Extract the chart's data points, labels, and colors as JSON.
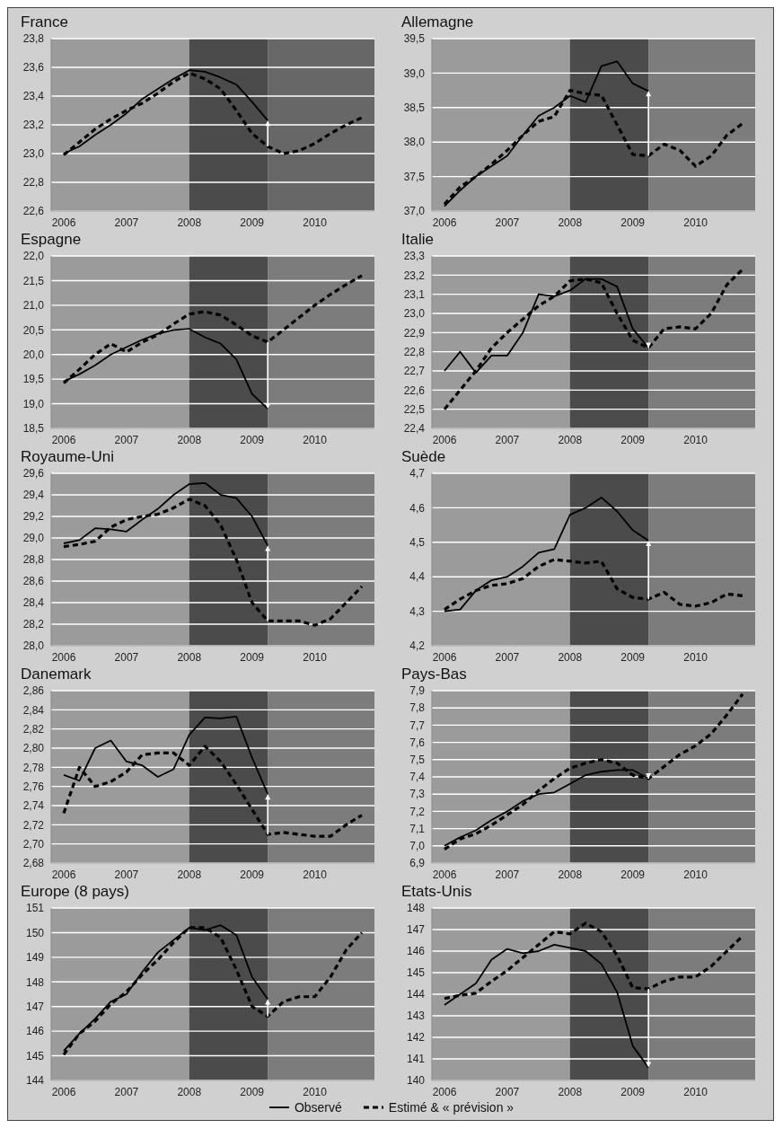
{
  "chart_data": [
    {
      "type": "line",
      "title": "France",
      "x": [
        2006,
        2006.25,
        2006.5,
        2006.75,
        2007,
        2007.25,
        2007.5,
        2007.75,
        2008,
        2008.25,
        2008.5,
        2008.75,
        2009,
        2009.25,
        2009.5,
        2009.75,
        2010,
        2010.25,
        2010.5,
        2010.75
      ],
      "xlim": [
        2005.8,
        2010.95
      ],
      "xticks": [
        2006,
        2007,
        2008,
        2009,
        2010
      ],
      "ylim": [
        22.6,
        23.8
      ],
      "yticks": [
        {
          "value": 22.6,
          "label": "22,6"
        },
        {
          "value": 22.8,
          "label": "22,8"
        },
        {
          "value": 23.0,
          "label": "23,0"
        },
        {
          "value": 23.2,
          "label": "23,2"
        },
        {
          "value": 23.4,
          "label": "23,4"
        },
        {
          "value": 23.6,
          "label": "23,6"
        },
        {
          "value": 23.8,
          "label": "23,8"
        }
      ],
      "grid": "y",
      "marker": "none",
      "bands": [
        {
          "axis": "x",
          "from": 2005.8,
          "to": 2008,
          "color": "#9b9b9b"
        },
        {
          "axis": "x",
          "from": 2008,
          "to": 2009.25,
          "color": "#4b4b4b"
        },
        {
          "axis": "x",
          "from": 2009.25,
          "to": 2010.95,
          "color": "#676767"
        }
      ],
      "series": [
        {
          "color": "#000000",
          "line_style": "solid",
          "values": [
            23.0,
            23.05,
            23.13,
            23.2,
            23.28,
            23.38,
            23.45,
            23.52,
            23.58,
            23.57,
            23.53,
            23.48,
            23.36,
            23.23,
            null,
            null,
            null,
            null,
            null,
            null
          ]
        },
        {
          "color": "#000000",
          "line_style": "dashed",
          "values": [
            22.99,
            23.08,
            23.17,
            23.24,
            23.3,
            23.35,
            23.42,
            23.5,
            23.56,
            23.52,
            23.45,
            23.3,
            23.14,
            23.05,
            23.0,
            23.02,
            23.07,
            23.14,
            23.2,
            23.25
          ]
        }
      ]
    },
    {
      "type": "line",
      "title": "Allemagne",
      "x": [
        2006,
        2006.25,
        2006.5,
        2006.75,
        2007,
        2007.25,
        2007.5,
        2007.75,
        2008,
        2008.25,
        2008.5,
        2008.75,
        2009,
        2009.25,
        2009.5,
        2009.75,
        2010,
        2010.25,
        2010.5,
        2010.75
      ],
      "xlim": [
        2005.8,
        2010.95
      ],
      "xticks": [
        2006,
        2007,
        2008,
        2009,
        2010
      ],
      "ylim": [
        37.0,
        39.5
      ],
      "yticks": [
        {
          "value": 37.0,
          "label": "37,0"
        },
        {
          "value": 37.5,
          "label": "37,5"
        },
        {
          "value": 38.0,
          "label": "38,0"
        },
        {
          "value": 38.5,
          "label": "38,5"
        },
        {
          "value": 39.0,
          "label": "39,0"
        },
        {
          "value": 39.5,
          "label": "39,5"
        }
      ],
      "grid": "y",
      "marker": "none",
      "bands": [
        {
          "axis": "x",
          "from": 2005.8,
          "to": 2008,
          "color": "#9b9b9b"
        },
        {
          "axis": "x",
          "from": 2008,
          "to": 2009.25,
          "color": "#4b4b4b"
        },
        {
          "axis": "x",
          "from": 2009.25,
          "to": 2010.95,
          "color": "#7c7c7c"
        }
      ],
      "series": [
        {
          "color": "#000000",
          "line_style": "solid",
          "values": [
            37.07,
            37.3,
            37.5,
            37.65,
            37.8,
            38.1,
            38.38,
            38.5,
            38.67,
            38.58,
            39.1,
            39.17,
            38.85,
            38.74,
            null,
            null,
            null,
            null,
            null,
            null
          ]
        },
        {
          "color": "#000000",
          "line_style": "dashed",
          "values": [
            37.1,
            37.35,
            37.5,
            37.68,
            37.88,
            38.1,
            38.3,
            38.37,
            38.75,
            38.7,
            38.68,
            38.25,
            37.82,
            37.8,
            37.97,
            37.88,
            37.65,
            37.8,
            38.1,
            38.27
          ]
        }
      ]
    },
    {
      "type": "line",
      "title": "Espagne",
      "x": [
        2006,
        2006.25,
        2006.5,
        2006.75,
        2007,
        2007.25,
        2007.5,
        2007.75,
        2008,
        2008.25,
        2008.5,
        2008.75,
        2009,
        2009.25,
        2009.5,
        2009.75,
        2010,
        2010.25,
        2010.5,
        2010.75
      ],
      "xlim": [
        2005.8,
        2010.95
      ],
      "xticks": [
        2006,
        2007,
        2008,
        2009,
        2010
      ],
      "ylim": [
        18.5,
        22.0
      ],
      "yticks": [
        {
          "value": 18.5,
          "label": "18,5"
        },
        {
          "value": 19.0,
          "label": "19,0"
        },
        {
          "value": 19.5,
          "label": "19,5"
        },
        {
          "value": 20.0,
          "label": "20,0"
        },
        {
          "value": 20.5,
          "label": "20,5"
        },
        {
          "value": 21.0,
          "label": "21,0"
        },
        {
          "value": 21.5,
          "label": "21,5"
        },
        {
          "value": 22.0,
          "label": "22,0"
        }
      ],
      "grid": "y",
      "marker": "none",
      "bands": [
        {
          "axis": "x",
          "from": 2005.8,
          "to": 2008,
          "color": "#9b9b9b"
        },
        {
          "axis": "x",
          "from": 2008,
          "to": 2009.25,
          "color": "#4b4b4b"
        },
        {
          "axis": "x",
          "from": 2009.25,
          "to": 2010.95,
          "color": "#7c7c7c"
        }
      ],
      "series": [
        {
          "color": "#000000",
          "line_style": "solid",
          "values": [
            19.45,
            19.6,
            19.78,
            20.0,
            20.15,
            20.3,
            20.42,
            20.5,
            20.52,
            20.35,
            20.22,
            19.9,
            19.2,
            18.9,
            null,
            null,
            null,
            null,
            null,
            null
          ]
        },
        {
          "color": "#000000",
          "line_style": "dashed",
          "values": [
            19.42,
            19.7,
            20.0,
            20.22,
            20.05,
            20.25,
            20.4,
            20.62,
            20.82,
            20.87,
            20.8,
            20.6,
            20.38,
            20.25,
            20.5,
            20.75,
            21.0,
            21.22,
            21.42,
            21.6
          ]
        }
      ]
    },
    {
      "type": "line",
      "title": "Italie",
      "x": [
        2006,
        2006.25,
        2006.5,
        2006.75,
        2007,
        2007.25,
        2007.5,
        2007.75,
        2008,
        2008.25,
        2008.5,
        2008.75,
        2009,
        2009.25,
        2009.5,
        2009.75,
        2010,
        2010.25,
        2010.5,
        2010.75
      ],
      "xlim": [
        2005.8,
        2010.95
      ],
      "xticks": [
        2006,
        2007,
        2008,
        2009,
        2010
      ],
      "ylim": [
        22.4,
        23.3
      ],
      "yticks": [
        {
          "value": 22.4,
          "label": "22,4"
        },
        {
          "value": 22.5,
          "label": "22,5"
        },
        {
          "value": 22.6,
          "label": "22,6"
        },
        {
          "value": 22.7,
          "label": "22,7"
        },
        {
          "value": 22.8,
          "label": "22,8"
        },
        {
          "value": 22.9,
          "label": "22,9"
        },
        {
          "value": 23.0,
          "label": "23,0"
        },
        {
          "value": 23.1,
          "label": "23,1"
        },
        {
          "value": 23.2,
          "label": "23,2"
        },
        {
          "value": 23.3,
          "label": "23,3"
        }
      ],
      "grid": "y",
      "marker": "none",
      "bands": [
        {
          "axis": "x",
          "from": 2005.8,
          "to": 2008,
          "color": "#9b9b9b"
        },
        {
          "axis": "x",
          "from": 2008,
          "to": 2009.25,
          "color": "#4b4b4b"
        },
        {
          "axis": "x",
          "from": 2009.25,
          "to": 2010.95,
          "color": "#7c7c7c"
        }
      ],
      "series": [
        {
          "color": "#000000",
          "line_style": "solid",
          "values": [
            22.7,
            22.8,
            22.69,
            22.78,
            22.78,
            22.9,
            23.1,
            23.09,
            23.12,
            23.18,
            23.18,
            23.14,
            22.92,
            22.82,
            null,
            null,
            null,
            null,
            null,
            null
          ]
        },
        {
          "color": "#000000",
          "line_style": "dashed",
          "values": [
            22.5,
            22.6,
            22.7,
            22.82,
            22.9,
            22.97,
            23.04,
            23.09,
            23.17,
            23.18,
            23.16,
            23.0,
            22.86,
            22.82,
            22.92,
            22.93,
            22.92,
            23.0,
            23.15,
            23.23
          ]
        }
      ]
    },
    {
      "type": "line",
      "title": "Royaume-Uni",
      "x": [
        2006,
        2006.25,
        2006.5,
        2006.75,
        2007,
        2007.25,
        2007.5,
        2007.75,
        2008,
        2008.25,
        2008.5,
        2008.75,
        2009,
        2009.25,
        2009.5,
        2009.75,
        2010,
        2010.25,
        2010.5,
        2010.75
      ],
      "xlim": [
        2005.8,
        2010.95
      ],
      "xticks": [
        2006,
        2007,
        2008,
        2009,
        2010
      ],
      "ylim": [
        28.0,
        29.6
      ],
      "yticks": [
        {
          "value": 28.0,
          "label": "28,0"
        },
        {
          "value": 28.2,
          "label": "28,2"
        },
        {
          "value": 28.4,
          "label": "28,4"
        },
        {
          "value": 28.6,
          "label": "28,6"
        },
        {
          "value": 28.8,
          "label": "28,8"
        },
        {
          "value": 29.0,
          "label": "29,0"
        },
        {
          "value": 29.2,
          "label": "29,2"
        },
        {
          "value": 29.4,
          "label": "29,4"
        },
        {
          "value": 29.6,
          "label": "29,6"
        }
      ],
      "grid": "y",
      "marker": "none",
      "bands": [
        {
          "axis": "x",
          "from": 2005.8,
          "to": 2008,
          "color": "#9b9b9b"
        },
        {
          "axis": "x",
          "from": 2008,
          "to": 2009.25,
          "color": "#4b4b4b"
        },
        {
          "axis": "x",
          "from": 2009.25,
          "to": 2010.95,
          "color": "#7c7c7c"
        }
      ],
      "series": [
        {
          "color": "#000000",
          "line_style": "solid",
          "values": [
            28.95,
            28.98,
            29.09,
            29.08,
            29.06,
            29.17,
            29.27,
            29.4,
            29.5,
            29.51,
            29.4,
            29.37,
            29.2,
            28.93,
            null,
            null,
            null,
            null,
            null,
            null
          ]
        },
        {
          "color": "#000000",
          "line_style": "dashed",
          "values": [
            28.92,
            28.94,
            28.97,
            29.1,
            29.17,
            29.2,
            29.22,
            29.28,
            29.36,
            29.3,
            29.12,
            28.8,
            28.4,
            28.23,
            28.23,
            28.23,
            28.19,
            28.25,
            28.4,
            28.55
          ]
        }
      ]
    },
    {
      "type": "line",
      "title": "Suède",
      "x": [
        2006,
        2006.25,
        2006.5,
        2006.75,
        2007,
        2007.25,
        2007.5,
        2007.75,
        2008,
        2008.25,
        2008.5,
        2008.75,
        2009,
        2009.25,
        2009.5,
        2009.75,
        2010,
        2010.25,
        2010.5,
        2010.75
      ],
      "xlim": [
        2005.8,
        2010.95
      ],
      "xticks": [
        2006,
        2007,
        2008,
        2009,
        2010
      ],
      "ylim": [
        4.2,
        4.7
      ],
      "yticks": [
        {
          "value": 4.2,
          "label": "4,2"
        },
        {
          "value": 4.3,
          "label": "4,3"
        },
        {
          "value": 4.4,
          "label": "4,4"
        },
        {
          "value": 4.5,
          "label": "4,5"
        },
        {
          "value": 4.6,
          "label": "4,6"
        },
        {
          "value": 4.7,
          "label": "4,7"
        }
      ],
      "grid": "y",
      "marker": "none",
      "bands": [
        {
          "axis": "x",
          "from": 2005.8,
          "to": 2008,
          "color": "#9b9b9b"
        },
        {
          "axis": "x",
          "from": 2008,
          "to": 2009.25,
          "color": "#4b4b4b"
        },
        {
          "axis": "x",
          "from": 2009.25,
          "to": 2010.95,
          "color": "#7c7c7c"
        }
      ],
      "series": [
        {
          "color": "#000000",
          "line_style": "solid",
          "values": [
            4.3,
            4.305,
            4.36,
            4.39,
            4.4,
            4.43,
            4.47,
            4.48,
            4.58,
            4.6,
            4.63,
            4.59,
            4.535,
            4.505,
            null,
            null,
            null,
            null,
            null,
            null
          ]
        },
        {
          "color": "#000000",
          "line_style": "dashed",
          "values": [
            4.305,
            4.335,
            4.36,
            4.375,
            4.38,
            4.395,
            4.43,
            4.45,
            4.445,
            4.44,
            4.445,
            4.365,
            4.34,
            4.335,
            4.355,
            4.32,
            4.315,
            4.325,
            4.35,
            4.345
          ]
        }
      ]
    },
    {
      "type": "line",
      "title": "Danemark",
      "x": [
        2006,
        2006.25,
        2006.5,
        2006.75,
        2007,
        2007.25,
        2007.5,
        2007.75,
        2008,
        2008.25,
        2008.5,
        2008.75,
        2009,
        2009.25,
        2009.5,
        2009.75,
        2010,
        2010.25,
        2010.5,
        2010.75
      ],
      "xlim": [
        2005.8,
        2010.95
      ],
      "xticks": [
        2006,
        2007,
        2008,
        2009,
        2010
      ],
      "ylim": [
        2.68,
        2.86
      ],
      "yticks": [
        {
          "value": 2.68,
          "label": "2,68"
        },
        {
          "value": 2.7,
          "label": "2,70"
        },
        {
          "value": 2.72,
          "label": "2,72"
        },
        {
          "value": 2.74,
          "label": "2,74"
        },
        {
          "value": 2.76,
          "label": "2,76"
        },
        {
          "value": 2.78,
          "label": "2,78"
        },
        {
          "value": 2.8,
          "label": "2,80"
        },
        {
          "value": 2.82,
          "label": "2,82"
        },
        {
          "value": 2.84,
          "label": "2,84"
        },
        {
          "value": 2.86,
          "label": "2,86"
        }
      ],
      "grid": "y",
      "marker": "none",
      "bands": [
        {
          "axis": "x",
          "from": 2005.8,
          "to": 2008,
          "color": "#9b9b9b"
        },
        {
          "axis": "x",
          "from": 2008,
          "to": 2009.25,
          "color": "#4b4b4b"
        },
        {
          "axis": "x",
          "from": 2009.25,
          "to": 2010.95,
          "color": "#7c7c7c"
        }
      ],
      "series": [
        {
          "color": "#000000",
          "line_style": "solid",
          "values": [
            2.772,
            2.766,
            2.8,
            2.808,
            2.786,
            2.782,
            2.77,
            2.778,
            2.814,
            2.832,
            2.831,
            2.833,
            2.79,
            2.752,
            null,
            null,
            null,
            null,
            null,
            null
          ]
        },
        {
          "color": "#000000",
          "line_style": "dashed",
          "values": [
            2.732,
            2.78,
            2.76,
            2.765,
            2.775,
            2.793,
            2.795,
            2.795,
            2.782,
            2.802,
            2.786,
            2.762,
            2.736,
            2.71,
            2.712,
            2.71,
            2.708,
            2.708,
            2.72,
            2.73
          ]
        }
      ]
    },
    {
      "type": "line",
      "title": "Pays-Bas",
      "x": [
        2006,
        2006.25,
        2006.5,
        2006.75,
        2007,
        2007.25,
        2007.5,
        2007.75,
        2008,
        2008.25,
        2008.5,
        2008.75,
        2009,
        2009.25,
        2009.5,
        2009.75,
        2010,
        2010.25,
        2010.5,
        2010.75
      ],
      "xlim": [
        2005.8,
        2010.95
      ],
      "xticks": [
        2006,
        2007,
        2008,
        2009,
        2010
      ],
      "ylim": [
        6.9,
        7.9
      ],
      "yticks": [
        {
          "value": 6.9,
          "label": "6,9"
        },
        {
          "value": 7.0,
          "label": "7,0"
        },
        {
          "value": 7.1,
          "label": "7,1"
        },
        {
          "value": 7.2,
          "label": "7,2"
        },
        {
          "value": 7.3,
          "label": "7,3"
        },
        {
          "value": 7.4,
          "label": "7,4"
        },
        {
          "value": 7.5,
          "label": "7,5"
        },
        {
          "value": 7.6,
          "label": "7,6"
        },
        {
          "value": 7.7,
          "label": "7,7"
        },
        {
          "value": 7.8,
          "label": "7,8"
        },
        {
          "value": 7.9,
          "label": "7,9"
        }
      ],
      "grid": "y",
      "marker": "none",
      "bands": [
        {
          "axis": "x",
          "from": 2005.8,
          "to": 2008,
          "color": "#9b9b9b"
        },
        {
          "axis": "x",
          "from": 2008,
          "to": 2009.25,
          "color": "#4b4b4b"
        },
        {
          "axis": "x",
          "from": 2009.25,
          "to": 2010.95,
          "color": "#7c7c7c"
        }
      ],
      "series": [
        {
          "color": "#000000",
          "line_style": "solid",
          "values": [
            7.0,
            7.05,
            7.09,
            7.15,
            7.2,
            7.26,
            7.3,
            7.31,
            7.36,
            7.41,
            7.43,
            7.44,
            7.44,
            7.39,
            null,
            null,
            null,
            null,
            null,
            null
          ]
        },
        {
          "color": "#000000",
          "line_style": "dashed",
          "values": [
            6.98,
            7.04,
            7.07,
            7.12,
            7.18,
            7.24,
            7.32,
            7.39,
            7.45,
            7.48,
            7.5,
            7.48,
            7.41,
            7.39,
            7.46,
            7.53,
            7.58,
            7.65,
            7.76,
            7.88
          ]
        }
      ]
    },
    {
      "type": "line",
      "title": "Europe (8 pays)",
      "x": [
        2006,
        2006.25,
        2006.5,
        2006.75,
        2007,
        2007.25,
        2007.5,
        2007.75,
        2008,
        2008.25,
        2008.5,
        2008.75,
        2009,
        2009.25,
        2009.5,
        2009.75,
        2010,
        2010.25,
        2010.5,
        2010.75
      ],
      "xlim": [
        2005.8,
        2010.95
      ],
      "xticks": [
        2006,
        2007,
        2008,
        2009,
        2010
      ],
      "ylim": [
        144,
        151
      ],
      "yticks": [
        144,
        145,
        146,
        147,
        148,
        149,
        150,
        151
      ],
      "grid": "y",
      "marker": "none",
      "bands": [
        {
          "axis": "x",
          "from": 2005.8,
          "to": 2008,
          "color": "#9b9b9b"
        },
        {
          "axis": "x",
          "from": 2008,
          "to": 2009.25,
          "color": "#4b4b4b"
        },
        {
          "axis": "x",
          "from": 2009.25,
          "to": 2010.95,
          "color": "#7c7c7c"
        }
      ],
      "series": [
        {
          "color": "#000000",
          "line_style": "solid",
          "values": [
            145.2,
            145.9,
            146.5,
            147.2,
            147.5,
            148.4,
            149.2,
            149.7,
            150.2,
            150.1,
            150.3,
            149.9,
            148.2,
            147.3,
            null,
            null,
            null,
            null,
            null,
            null
          ]
        },
        {
          "color": "#000000",
          "line_style": "dashed",
          "values": [
            145.05,
            145.9,
            146.4,
            147.1,
            147.6,
            148.3,
            148.9,
            149.6,
            150.2,
            150.2,
            149.8,
            148.5,
            147.0,
            146.6,
            147.2,
            147.4,
            147.4,
            148.2,
            149.3,
            150.0
          ]
        }
      ]
    },
    {
      "type": "line",
      "title": "Etats-Unis",
      "x": [
        2006,
        2006.25,
        2006.5,
        2006.75,
        2007,
        2007.25,
        2007.5,
        2007.75,
        2008,
        2008.25,
        2008.5,
        2008.75,
        2009,
        2009.25,
        2009.5,
        2009.75,
        2010,
        2010.25,
        2010.5,
        2010.75
      ],
      "xlim": [
        2005.8,
        2010.95
      ],
      "xticks": [
        2006,
        2007,
        2008,
        2009,
        2010
      ],
      "ylim": [
        140,
        148
      ],
      "yticks": [
        140,
        141,
        142,
        143,
        144,
        145,
        146,
        147,
        148
      ],
      "grid": "y",
      "marker": "none",
      "legend": "bottom",
      "bands": [
        {
          "axis": "x",
          "from": 2005.8,
          "to": 2008,
          "color": "#9b9b9b"
        },
        {
          "axis": "x",
          "from": 2008,
          "to": 2009.25,
          "color": "#4b4b4b"
        },
        {
          "axis": "x",
          "from": 2009.25,
          "to": 2010.95,
          "color": "#7c7c7c"
        }
      ],
      "series": [
        {
          "name": "Observé",
          "color": "#000000",
          "line_style": "solid",
          "values": [
            143.5,
            144.0,
            144.5,
            145.6,
            146.1,
            145.9,
            146.0,
            146.3,
            146.15,
            146.0,
            145.4,
            144.1,
            141.6,
            140.6,
            null,
            null,
            null,
            null,
            null,
            null
          ]
        },
        {
          "name": "Estimé & « prévision »",
          "color": "#000000",
          "line_style": "dashed",
          "values": [
            143.8,
            143.95,
            144.05,
            144.6,
            145.1,
            145.7,
            146.3,
            146.9,
            146.8,
            147.3,
            146.9,
            145.8,
            144.3,
            144.25,
            144.6,
            144.8,
            144.8,
            145.3,
            146.0,
            146.7
          ]
        }
      ]
    }
  ]
}
